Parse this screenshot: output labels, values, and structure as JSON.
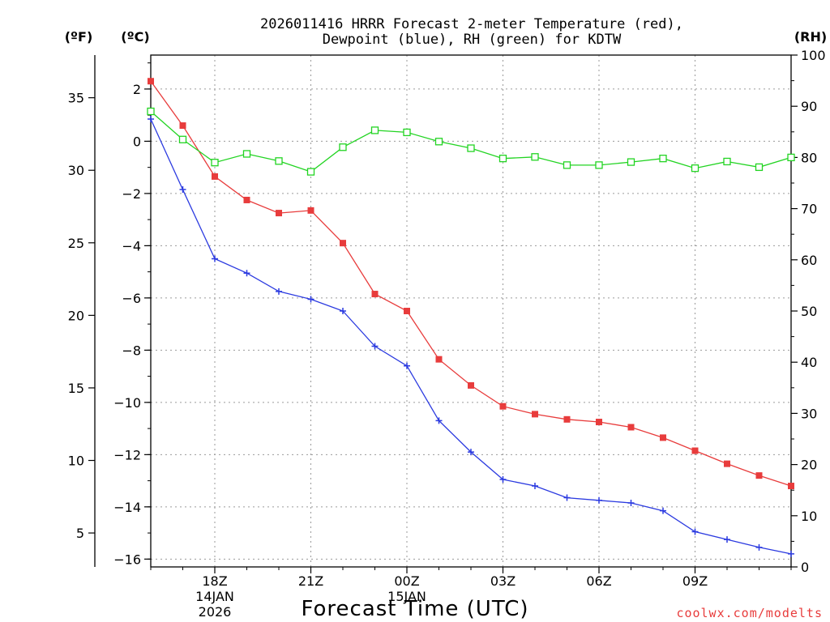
{
  "chart_data": {
    "type": "line",
    "title_line1": "2026011416 HRRR Forecast 2-meter Temperature (red),",
    "title_line2": "Dewpoint (blue), RH (green) for KDTW",
    "xlabel": "Forecast Time (UTC)",
    "credit": "coolwx.com/modelts",
    "units": {
      "fahrenheit": "(ºF)",
      "celsius": "(ºC)",
      "rh": "(RH)"
    },
    "hours": [
      0,
      1,
      2,
      3,
      4,
      5,
      6,
      7,
      8,
      9,
      10,
      11,
      12,
      13,
      14,
      15,
      16,
      17,
      18,
      19,
      20
    ],
    "x_range": [
      0,
      20
    ],
    "x_ticks": [
      {
        "hour": 2,
        "label": "18Z",
        "sub1": "14JAN",
        "sub2": "2026"
      },
      {
        "hour": 5,
        "label": "21Z",
        "sub1": "",
        "sub2": ""
      },
      {
        "hour": 8,
        "label": "00Z",
        "sub1": "15JAN",
        "sub2": ""
      },
      {
        "hour": 11,
        "label": "03Z",
        "sub1": "",
        "sub2": ""
      },
      {
        "hour": 14,
        "label": "06Z",
        "sub1": "",
        "sub2": ""
      },
      {
        "hour": 17,
        "label": "09Z",
        "sub1": "",
        "sub2": ""
      }
    ],
    "celsius_axis": {
      "range": [
        -16.3,
        3.3
      ],
      "ticks": [
        "2",
        "0",
        "−2",
        "−4",
        "−6",
        "−8",
        "−10",
        "−12",
        "−14",
        "−16"
      ],
      "tick_values": [
        2,
        0,
        -2,
        -4,
        -6,
        -8,
        -10,
        -12,
        -14,
        -16
      ]
    },
    "fahrenheit_axis": {
      "ticks": [
        "35",
        "30",
        "25",
        "20",
        "15",
        "10",
        "5"
      ],
      "tick_values": [
        35,
        30,
        25,
        20,
        15,
        10,
        5
      ]
    },
    "rh_axis": {
      "range": [
        0,
        100
      ],
      "ticks": [
        "100",
        "90",
        "80",
        "70",
        "60",
        "50",
        "40",
        "30",
        "20",
        "10",
        "0"
      ],
      "tick_values": [
        100,
        90,
        80,
        70,
        60,
        50,
        40,
        30,
        20,
        10,
        0
      ]
    },
    "series": [
      {
        "name": "Temperature",
        "color": "#e83c3c",
        "marker": "filled-square",
        "axis": "celsius",
        "values": [
          2.3,
          0.6,
          -1.35,
          -2.25,
          -2.75,
          -2.65,
          -3.9,
          -5.85,
          -6.5,
          -8.35,
          -9.35,
          -10.15,
          -10.45,
          -10.65,
          -10.75,
          -10.95,
          -11.35,
          -11.85,
          -12.35,
          -12.8,
          -13.2
        ]
      },
      {
        "name": "Dewpoint",
        "color": "#2b3ae0",
        "marker": "plus",
        "axis": "celsius",
        "values": [
          0.85,
          -1.85,
          -4.5,
          -5.05,
          -5.75,
          -6.05,
          -6.5,
          -7.85,
          -8.6,
          -10.7,
          -11.9,
          -12.95,
          -13.2,
          -13.65,
          -13.75,
          -13.85,
          -14.15,
          -14.95,
          -15.25,
          -15.55,
          -15.8
        ]
      },
      {
        "name": "RH",
        "color": "#22d422",
        "marker": "open-square",
        "axis": "rh",
        "values": [
          89,
          83.5,
          79,
          80.7,
          79.3,
          77.2,
          82,
          85.3,
          84.9,
          83.1,
          81.8,
          79.8,
          80.1,
          78.5,
          78.5,
          79.1,
          79.8,
          77.9,
          79.2,
          78.1,
          80.0
        ]
      }
    ]
  }
}
